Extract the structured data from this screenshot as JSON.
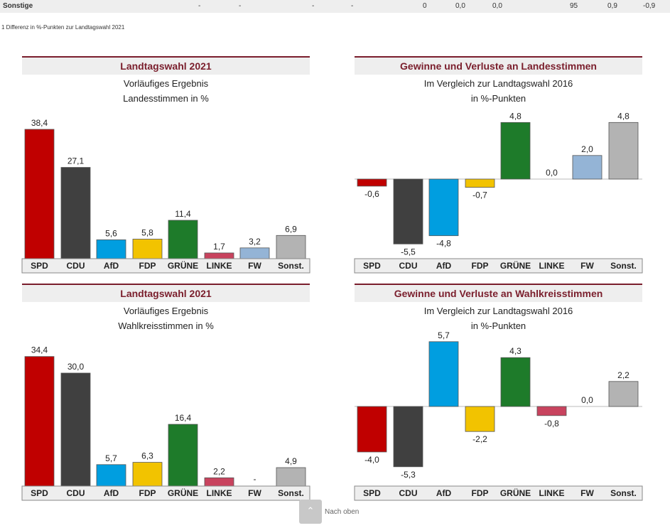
{
  "table_row": {
    "label": "Sonstige",
    "cells": [
      "-",
      "-",
      "-",
      "-",
      "0",
      "0,0",
      "0,0",
      "95",
      "0,9",
      "-0,9"
    ]
  },
  "footnote": "1 Differenz in %-Punkten zur Landtagswahl 2021",
  "scroll_top": {
    "label": "Nach oben",
    "icon": "chevron-up-icon"
  },
  "colors": {
    "SPD": "#c00000",
    "CDU": "#404040",
    "AfD": "#009ee0",
    "FDP": "#f2c300",
    "GRÜNE": "#1e7b2a",
    "LINKE": "#c8435e",
    "FW": "#94b4d6",
    "Sonst.": "#b3b3b3",
    "title": "#7a1e2c"
  },
  "chart_data": [
    {
      "type": "bar",
      "title": "Landtagswahl 2021",
      "subtitle": [
        "Vorläufiges Ergebnis",
        "Landesstimmen in %"
      ],
      "categories": [
        "SPD",
        "CDU",
        "AfD",
        "FDP",
        "GRÜNE",
        "LINKE",
        "FW",
        "Sonst."
      ],
      "values": [
        38.4,
        27.1,
        5.6,
        5.8,
        11.4,
        1.7,
        3.2,
        6.9
      ],
      "labels": [
        "38,4",
        "27,1",
        "5,6",
        "5,8",
        "11,4",
        "1,7",
        "3,2",
        "6,9"
      ]
    },
    {
      "type": "bar",
      "title": "Gewinne und Verluste an Landesstimmen",
      "subtitle": [
        "Im Vergleich zur Landtagswahl 2016",
        "in %-Punkten"
      ],
      "categories": [
        "SPD",
        "CDU",
        "AfD",
        "FDP",
        "GRÜNE",
        "LINKE",
        "FW",
        "Sonst."
      ],
      "values": [
        -0.6,
        -5.5,
        -4.8,
        -0.7,
        4.8,
        0.0,
        2.0,
        4.8
      ],
      "labels": [
        "-0,6",
        "-5,5",
        "-4,8",
        "-0,7",
        "4,8",
        "0,0",
        "2,0",
        "4,8"
      ]
    },
    {
      "type": "bar",
      "title": "Landtagswahl 2021",
      "subtitle": [
        "Vorläufiges Ergebnis",
        "Wahlkreisstimmen in %"
      ],
      "categories": [
        "SPD",
        "CDU",
        "AfD",
        "FDP",
        "GRÜNE",
        "LINKE",
        "FW",
        "Sonst."
      ],
      "values": [
        34.4,
        30.0,
        5.7,
        6.3,
        16.4,
        2.2,
        null,
        4.9
      ],
      "labels": [
        "34,4",
        "30,0",
        "5,7",
        "6,3",
        "16,4",
        "2,2",
        "-",
        "4,9"
      ]
    },
    {
      "type": "bar",
      "title": "Gewinne und Verluste an Wahlkreisstimmen",
      "subtitle": [
        "Im Vergleich zur Landtagswahl 2016",
        "in %-Punkten"
      ],
      "categories": [
        "SPD",
        "CDU",
        "AfD",
        "FDP",
        "GRÜNE",
        "LINKE",
        "FW",
        "Sonst."
      ],
      "values": [
        -4.0,
        -5.3,
        5.7,
        -2.2,
        4.3,
        -0.8,
        0.0,
        2.2
      ],
      "labels": [
        "-4,0",
        "-5,3",
        "5,7",
        "-2,2",
        "4,3",
        "-0,8",
        "0,0",
        "2,2"
      ]
    }
  ]
}
